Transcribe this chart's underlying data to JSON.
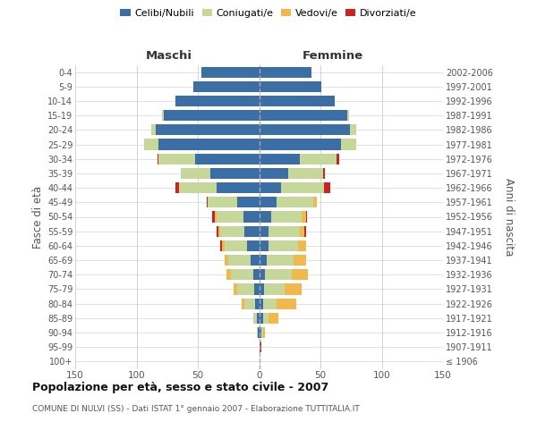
{
  "age_groups": [
    "100+",
    "95-99",
    "90-94",
    "85-89",
    "80-84",
    "75-79",
    "70-74",
    "65-69",
    "60-64",
    "55-59",
    "50-54",
    "45-49",
    "40-44",
    "35-39",
    "30-34",
    "25-29",
    "20-24",
    "15-19",
    "10-14",
    "5-9",
    "0-4"
  ],
  "birth_years": [
    "≤ 1906",
    "1907-1911",
    "1912-1916",
    "1917-1921",
    "1922-1926",
    "1927-1931",
    "1932-1936",
    "1937-1941",
    "1942-1946",
    "1947-1951",
    "1952-1956",
    "1957-1961",
    "1962-1966",
    "1967-1971",
    "1972-1976",
    "1977-1981",
    "1982-1986",
    "1987-1991",
    "1992-1996",
    "1997-2001",
    "2002-2006"
  ],
  "males": {
    "celibi": [
      0,
      0,
      1,
      2,
      3,
      4,
      5,
      7,
      10,
      12,
      13,
      18,
      35,
      40,
      52,
      82,
      84,
      78,
      68,
      54,
      47
    ],
    "coniugati": [
      0,
      0,
      1,
      3,
      9,
      14,
      18,
      18,
      18,
      20,
      22,
      24,
      30,
      24,
      30,
      12,
      4,
      1,
      0,
      0,
      0
    ],
    "vedovi": [
      0,
      0,
      0,
      0,
      2,
      3,
      4,
      3,
      2,
      1,
      1,
      0,
      0,
      0,
      0,
      0,
      0,
      0,
      0,
      0,
      0
    ],
    "divorziati": [
      0,
      0,
      0,
      0,
      0,
      0,
      0,
      0,
      2,
      2,
      2,
      1,
      3,
      0,
      1,
      0,
      0,
      0,
      0,
      0,
      0
    ]
  },
  "females": {
    "nubili": [
      0,
      1,
      2,
      3,
      3,
      4,
      5,
      6,
      8,
      8,
      10,
      14,
      18,
      24,
      33,
      67,
      74,
      72,
      62,
      51,
      43
    ],
    "coniugate": [
      0,
      0,
      1,
      5,
      11,
      17,
      22,
      22,
      24,
      25,
      25,
      30,
      35,
      28,
      30,
      12,
      5,
      1,
      0,
      0,
      0
    ],
    "vedove": [
      0,
      0,
      2,
      8,
      16,
      14,
      13,
      10,
      6,
      4,
      3,
      3,
      0,
      0,
      0,
      0,
      0,
      0,
      0,
      0,
      0
    ],
    "divorziate": [
      0,
      1,
      0,
      0,
      0,
      0,
      0,
      0,
      0,
      1,
      1,
      0,
      5,
      2,
      2,
      0,
      0,
      0,
      0,
      0,
      0
    ]
  },
  "colors": {
    "celibi": "#3a6ea5",
    "coniugati": "#c5d89a",
    "vedovi": "#f2b84b",
    "divorziati": "#cc2222"
  },
  "legend_labels": [
    "Celibi/Nubili",
    "Coniugati/e",
    "Vedovi/e",
    "Divorziati/e"
  ],
  "title": "Popolazione per età, sesso e stato civile - 2007",
  "subtitle": "COMUNE DI NULVI (SS) - Dati ISTAT 1° gennaio 2007 - Elaborazione TUTTITALIA.IT",
  "ylabel_left": "Fasce di età",
  "ylabel_right": "Anni di nascita",
  "xlabel_maschi": "Maschi",
  "xlabel_femmine": "Femmine",
  "xlim": 150,
  "background_color": "#ffffff",
  "grid_color": "#cccccc",
  "bar_height": 0.75
}
